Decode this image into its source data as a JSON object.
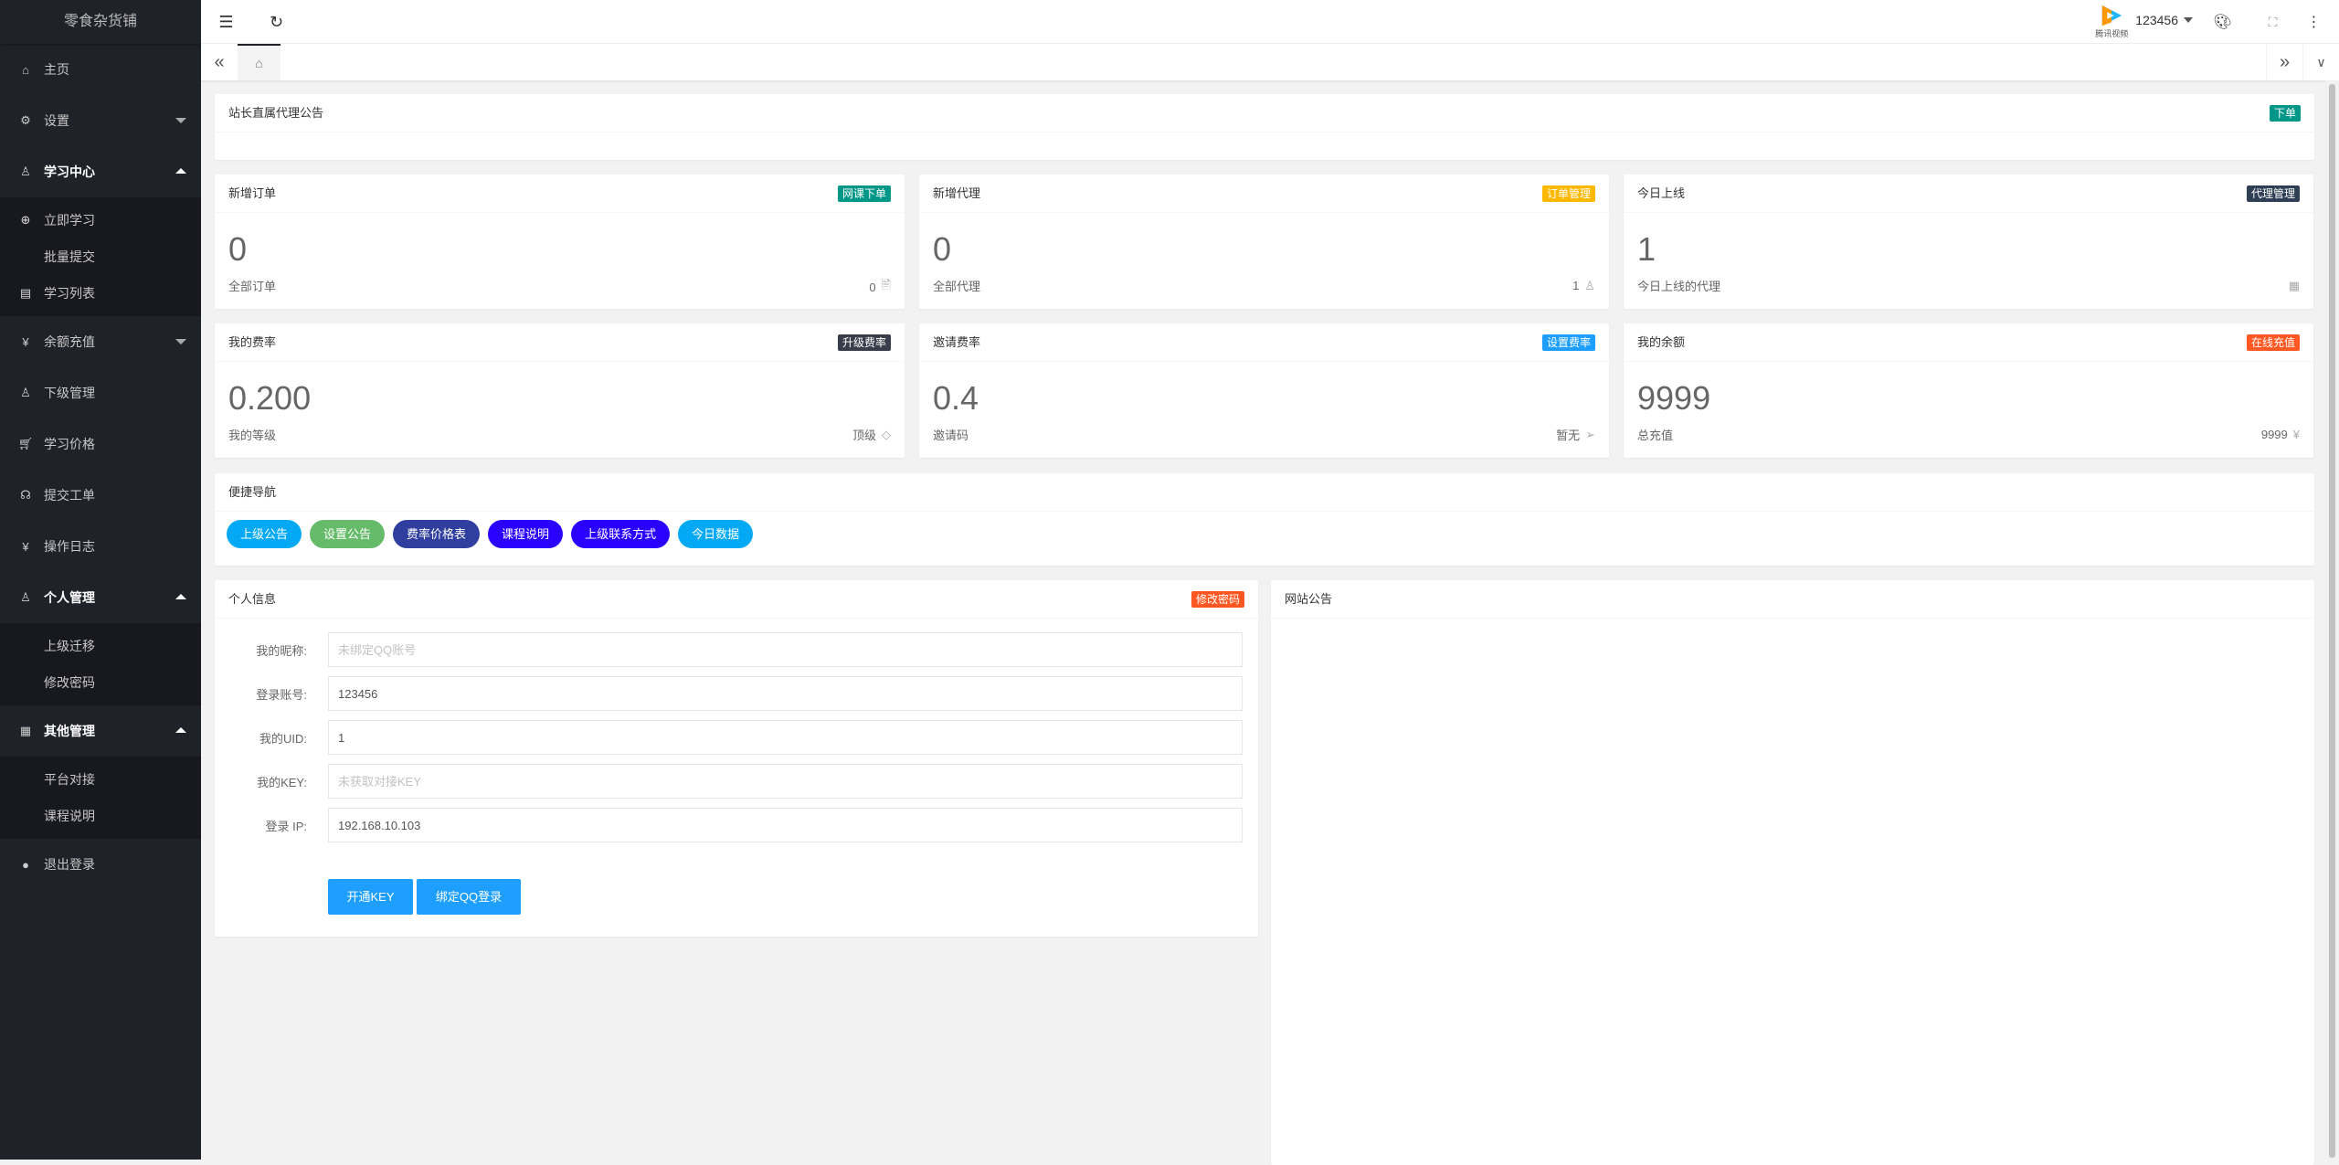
{
  "app": {
    "title": "零食杂货铺"
  },
  "sidebar": {
    "home": "主页",
    "settings": "设置",
    "study_center": "学习中心",
    "study_sub": [
      "立即学习",
      "批量提交",
      "学习列表"
    ],
    "recharge": "余额充值",
    "sub_agents": "下级管理",
    "study_price": "学习价格",
    "ticket": "提交工单",
    "op_log": "操作日志",
    "personal": "个人管理",
    "personal_sub": [
      "上级迁移",
      "修改密码"
    ],
    "other": "其他管理",
    "other_sub": [
      "平台对接",
      "课程说明"
    ],
    "logout": "退出登录"
  },
  "header": {
    "username": "123456",
    "avatar_caption": "腾讯视频"
  },
  "announce": {
    "title": "站长直属代理公告",
    "badge": "下单"
  },
  "stats": [
    {
      "title": "新增订单",
      "badge": "网课下单",
      "badge_color": "#009688",
      "value": "0",
      "label": "全部订单",
      "right": "0",
      "icon": "file-icon"
    },
    {
      "title": "新增代理",
      "badge": "订单管理",
      "badge_color": "#ffb800",
      "value": "0",
      "label": "全部代理",
      "right": "1",
      "icon": "user-icon"
    },
    {
      "title": "今日上线",
      "badge": "代理管理",
      "badge_color": "#2f4056",
      "value": "1",
      "label": "今日上线的代理",
      "right": "",
      "icon": "grid-icon"
    },
    {
      "title": "我的费率",
      "badge": "升级费率",
      "badge_color": "#393d49",
      "value": "0.200",
      "label": "我的等级",
      "right": "顶级",
      "icon": "diamond-icon"
    },
    {
      "title": "邀请费率",
      "badge": "设置费率",
      "badge_color": "#1e9fff",
      "value": "0.4",
      "label": "邀请码",
      "right": "暂无",
      "icon": "send-icon"
    },
    {
      "title": "我的余额",
      "badge": "在线充值",
      "badge_color": "#ff5722",
      "value": "9999",
      "label": "总充值",
      "right": "9999",
      "icon": "yen-icon"
    }
  ],
  "quick_nav": {
    "title": "便捷导航",
    "buttons": [
      {
        "label": "上级公告",
        "color": "#03a9f4"
      },
      {
        "label": "设置公告",
        "color": "#66bb6a"
      },
      {
        "label": "费率价格表",
        "color": "#303f9f"
      },
      {
        "label": "课程说明",
        "color": "#2a00ff"
      },
      {
        "label": "上级联系方式",
        "color": "#2a00ff"
      },
      {
        "label": "今日数据",
        "color": "#03a9f4"
      }
    ]
  },
  "profile": {
    "title": "个人信息",
    "badge": "修改密码",
    "fields": [
      {
        "label": "我的昵称:",
        "value": "",
        "placeholder": "未绑定QQ账号"
      },
      {
        "label": "登录账号:",
        "value": "123456",
        "placeholder": ""
      },
      {
        "label": "我的UID:",
        "value": "1",
        "placeholder": ""
      },
      {
        "label": "我的KEY:",
        "value": "",
        "placeholder": "未获取对接KEY"
      },
      {
        "label": "登录 IP:",
        "value": "192.168.10.103",
        "placeholder": ""
      }
    ],
    "open_key": "开通KEY",
    "bind_qq": "绑定QQ登录"
  },
  "site_notice": {
    "title": "网站公告"
  }
}
